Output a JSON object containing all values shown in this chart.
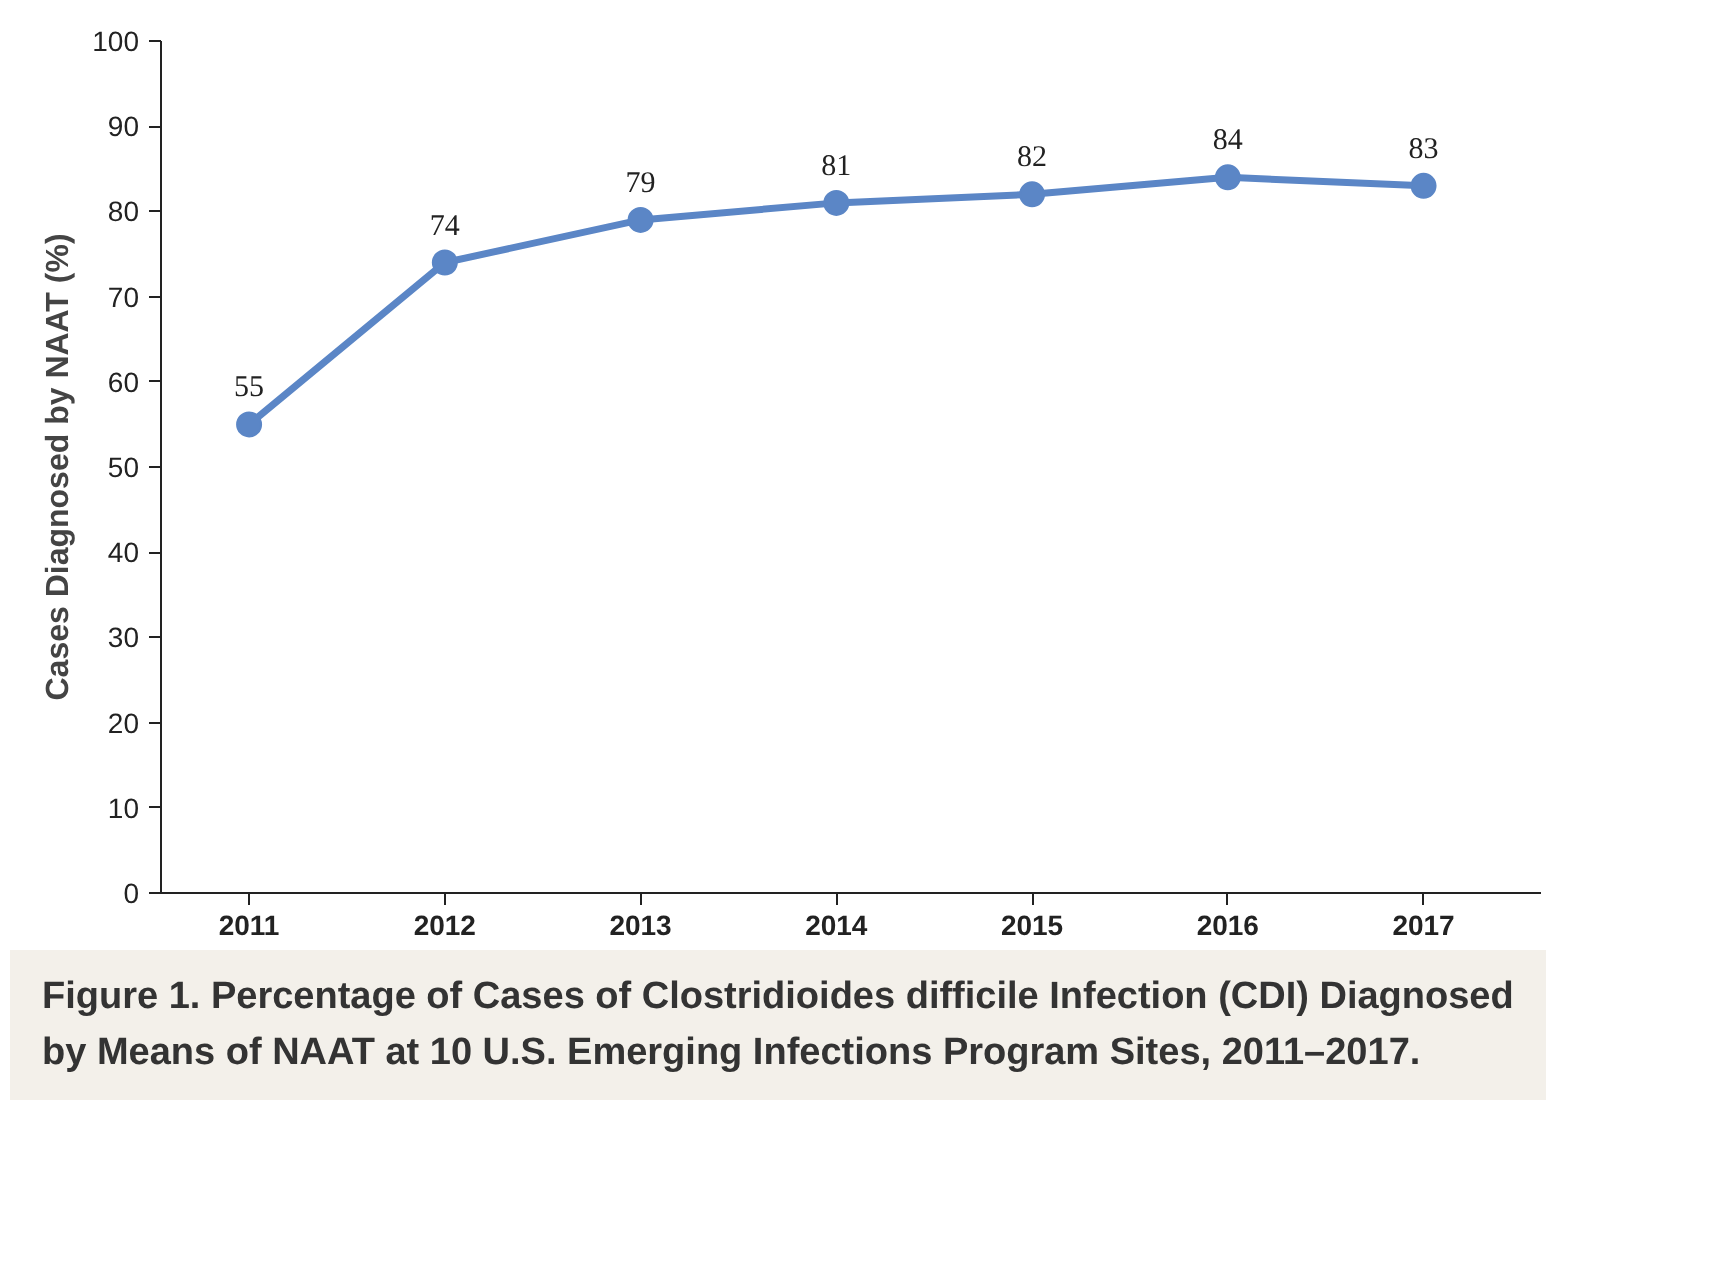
{
  "chart_data": {
    "type": "line",
    "categories": [
      "2011",
      "2012",
      "2013",
      "2014",
      "2015",
      "2016",
      "2017"
    ],
    "series": [
      {
        "color": "#5b86c6",
        "values": [
          55,
          74,
          79,
          81,
          82,
          84,
          83
        ]
      }
    ],
    "ylabel": "Cases Diagnosed by NAAT (%)",
    "ylim": [
      0,
      100
    ],
    "yticks": [
      0,
      10,
      20,
      30,
      40,
      50,
      60,
      70,
      80,
      90,
      100
    ],
    "data_labels": true,
    "marker": "circle",
    "line_style": "solid",
    "grid": false,
    "annotations": [
      "Figure 1. Percentage of Cases of Clostridioides difficile Infection (CDI) Diagnosed by Means of NAAT at 10 U.S. Emerging Infections Program Sites, 2011–2017."
    ]
  }
}
